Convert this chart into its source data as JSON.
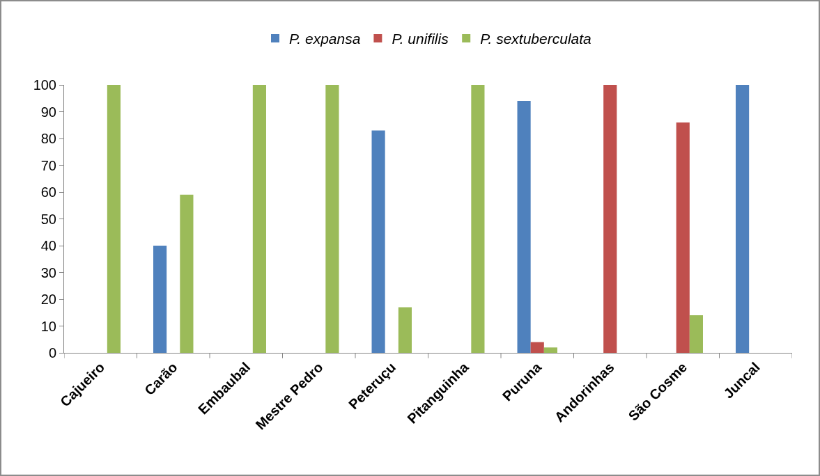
{
  "chart_data": {
    "type": "bar",
    "categories": [
      "Cajueiro",
      "Carão",
      "Embaubal",
      "Mestre Pedro",
      "Peteruçu",
      "Pitanguinha",
      "Puruna",
      "Andorinhas",
      "São Cosme",
      "Juncal"
    ],
    "series": [
      {
        "name": "P. expansa",
        "color": "#4f81bd",
        "values": [
          0,
          40,
          0,
          0,
          83,
          0,
          94,
          0,
          0,
          100
        ]
      },
      {
        "name": "P. unifilis",
        "color": "#c0504d",
        "values": [
          0,
          0,
          0,
          0,
          0,
          0,
          4,
          100,
          86,
          0
        ]
      },
      {
        "name": "P. sextuberculata",
        "color": "#9bbb59",
        "values": [
          100,
          59,
          100,
          100,
          17,
          100,
          2,
          0,
          14,
          0
        ]
      }
    ],
    "ylim": [
      0,
      100
    ],
    "yticks": [
      0,
      10,
      20,
      30,
      40,
      50,
      60,
      70,
      80,
      90,
      100
    ],
    "grid": false,
    "legend": "top"
  }
}
